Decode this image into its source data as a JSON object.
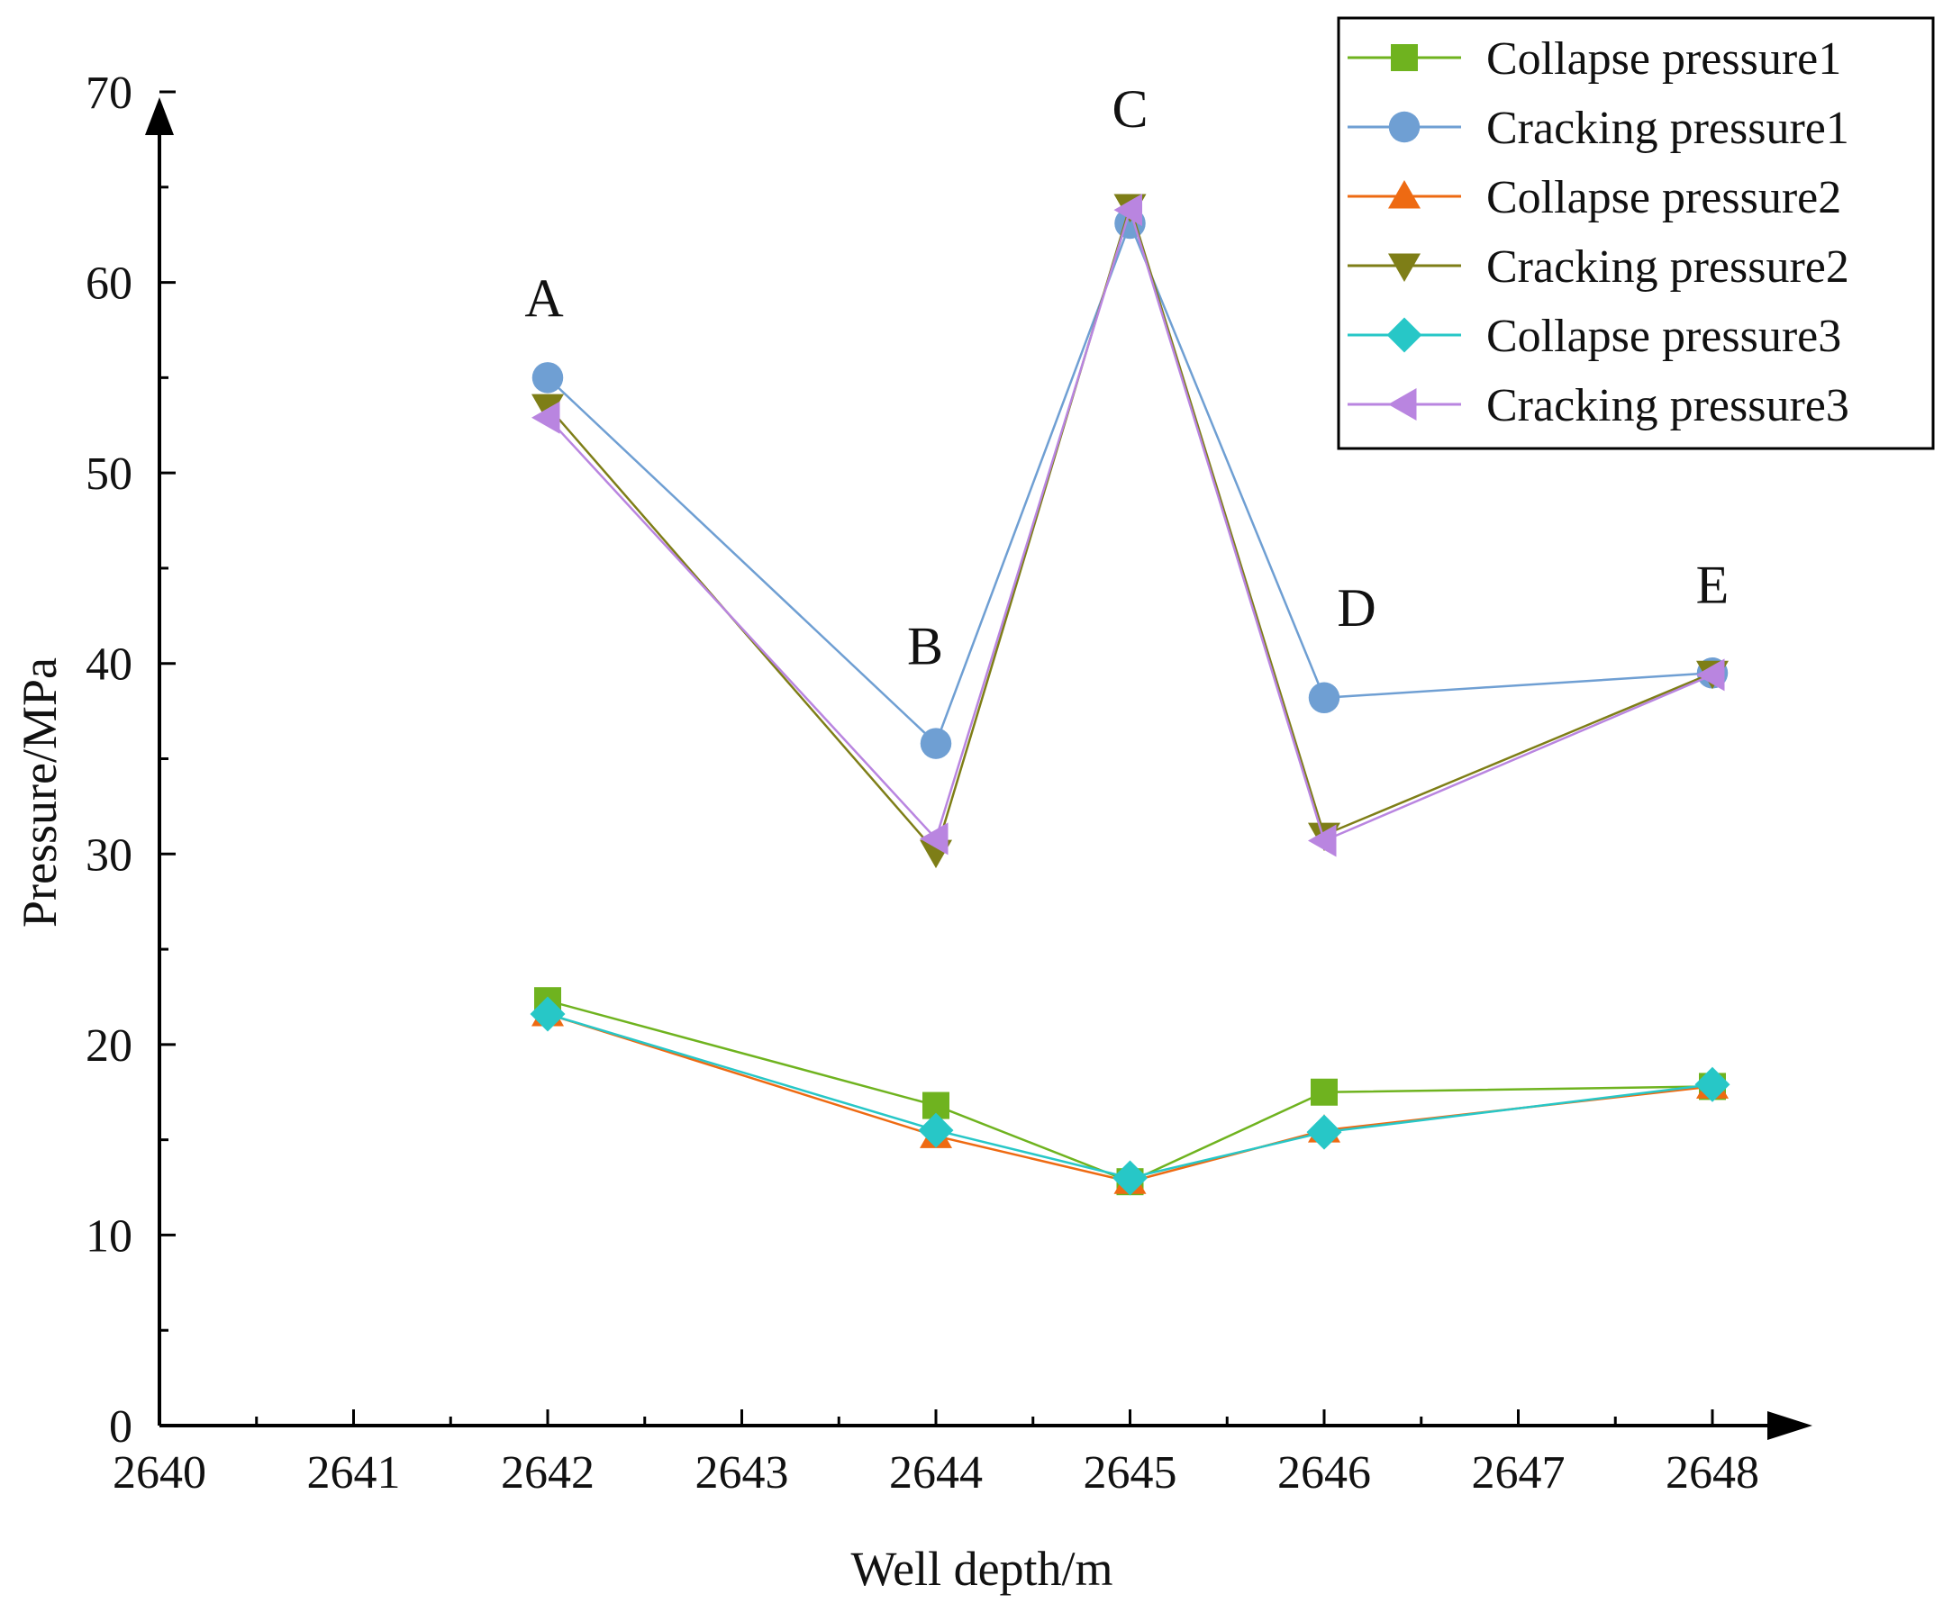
{
  "chart_data": {
    "type": "line",
    "xlabel": "Well depth/m",
    "ylabel": "Pressure/MPa",
    "xlim": [
      2640,
      2648
    ],
    "ylim": [
      0,
      70
    ],
    "xticks": [
      2640,
      2641,
      2642,
      2643,
      2644,
      2645,
      2646,
      2647,
      2648
    ],
    "xtick_labels": [
      "2640",
      "2641",
      "2642",
      "2643",
      "2644",
      "2645",
      "2646",
      "2647",
      "2648"
    ],
    "yticks": [
      0,
      10,
      20,
      30,
      40,
      50,
      60,
      70
    ],
    "ytick_labels": [
      "0",
      "10",
      "20",
      "30",
      "40",
      "50",
      "60",
      "70"
    ],
    "grid": false,
    "legend_position": "top-right",
    "x": [
      2642,
      2644,
      2645,
      2646,
      2648
    ],
    "series": [
      {
        "name": "Collapse pressure1",
        "marker": "square",
        "color": "#6fb31f",
        "values": [
          22.3,
          16.8,
          12.8,
          17.5,
          17.8
        ]
      },
      {
        "name": "Cracking pressure1",
        "marker": "circle",
        "color": "#6f9fd3",
        "values": [
          55.0,
          35.8,
          63.1,
          38.2,
          39.5
        ]
      },
      {
        "name": "Collapse pressure2",
        "marker": "triangle-up",
        "color": "#ee6a12",
        "values": [
          21.6,
          15.2,
          12.8,
          15.5,
          17.8
        ]
      },
      {
        "name": "Cracking pressure2",
        "marker": "triangle-down",
        "color": "#7e7e17",
        "values": [
          53.5,
          30.1,
          64.0,
          31.0,
          39.5
        ]
      },
      {
        "name": "Collapse pressure3",
        "marker": "diamond",
        "color": "#27c7c7",
        "values": [
          21.6,
          15.5,
          13.0,
          15.4,
          17.9
        ]
      },
      {
        "name": "Cracking pressure3",
        "marker": "triangle-left",
        "color": "#b985e0",
        "values": [
          52.9,
          30.8,
          63.8,
          30.7,
          39.4
        ]
      }
    ],
    "annotations": [
      {
        "text": "A",
        "x": 2642,
        "y": 55.0
      },
      {
        "text": "B",
        "x": 2644,
        "y": 35.8
      },
      {
        "text": "C",
        "x": 2645,
        "y": 64.0
      },
      {
        "text": "D",
        "x": 2646,
        "y": 38.2
      },
      {
        "text": "E",
        "x": 2648,
        "y": 39.5
      }
    ]
  }
}
